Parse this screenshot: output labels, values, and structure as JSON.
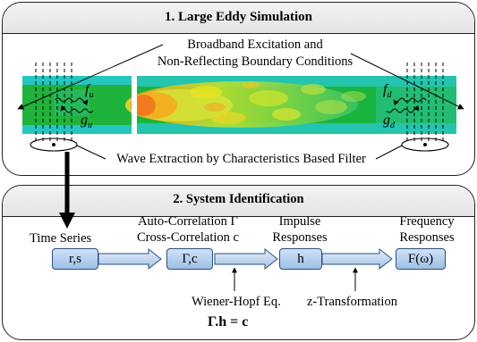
{
  "panel_les": {
    "title": "1. Large Eddy Simulation",
    "excitation_line1": "Broadband Excitation and",
    "excitation_line2": "Non-Reflecting Boundary Conditions",
    "wave_extraction": "Wave Extraction by Characteristics Based Filter",
    "labels": {
      "f_u": "f",
      "f_u_sub": "u",
      "g_u": "g",
      "g_u_sub": "u",
      "f_d": "f",
      "f_d_sub": "d",
      "g_d": "g",
      "g_d_sub": "d"
    }
  },
  "panel_sysid": {
    "title": "2. System Identification",
    "col1_label": "Time Series",
    "col2_label_line1": "Auto-Correlation Γ",
    "col2_label_line2": "Cross-Correlation c",
    "col3_label_line1": "Impulse",
    "col3_label_line2": "Responses",
    "col4_label_line1": "Frequency",
    "col4_label_line2": "Responses",
    "nodes": [
      "r,s",
      "Γ,c",
      "h",
      "F(ω)"
    ],
    "wiener_hopf": "Wiener-Hopf Eq.",
    "z_transform": "z-Transformation",
    "equation": "Γ.h = c"
  },
  "colors": {
    "node_fill_top": "#cfe1f6",
    "node_fill_bottom": "#9dbfe6",
    "node_border": "#2c4f80",
    "flow_green": "#1fb33b",
    "flow_cyan": "#25c6c0",
    "flow_yellow": "#e3e81c",
    "flow_orange": "#f08a1f"
  }
}
